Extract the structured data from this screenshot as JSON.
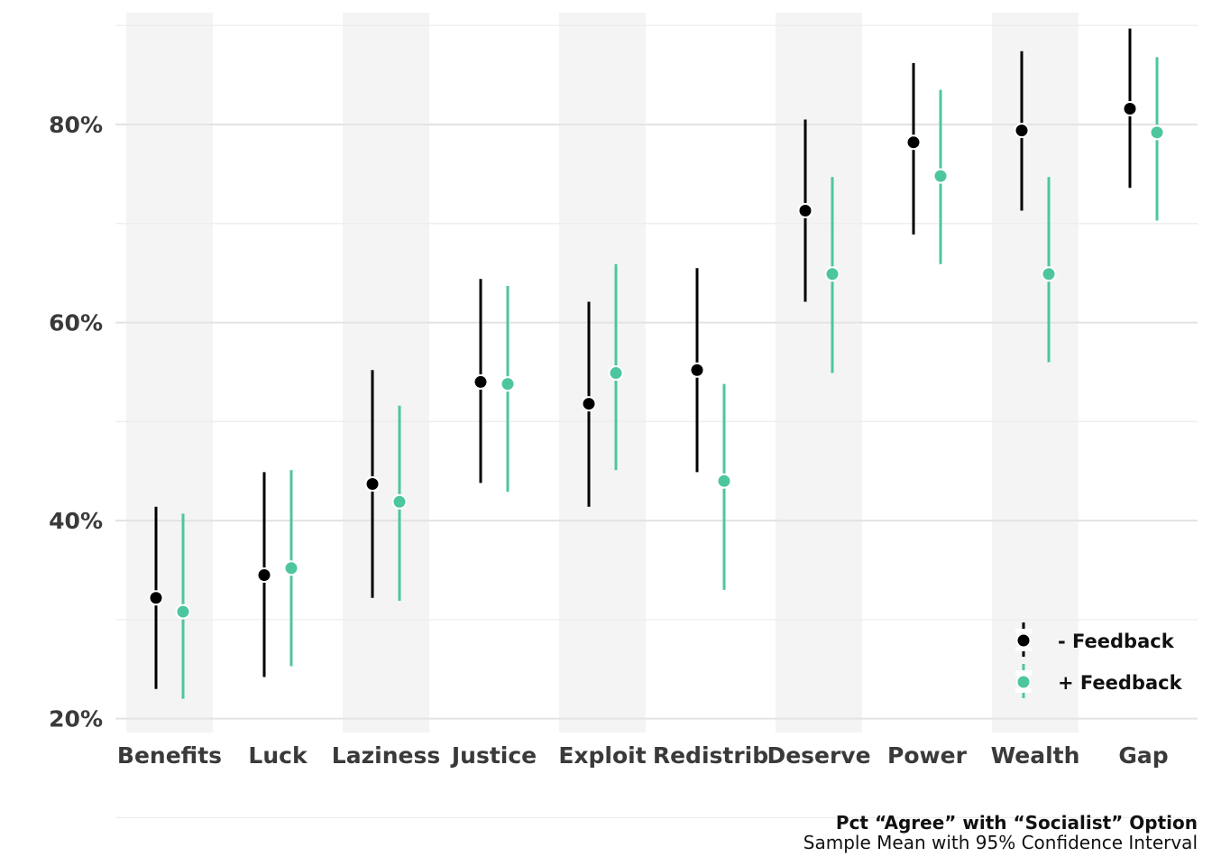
{
  "chart_data": {
    "type": "scatter",
    "subtype": "point-range (dodged)",
    "categories": [
      "Benefits",
      "Luck",
      "Laziness",
      "Justice",
      "Exploit",
      "Redistrib",
      "Deserve",
      "Power",
      "Wealth",
      "Gap"
    ],
    "series": [
      {
        "name": "- Feedback",
        "color": "#000000",
        "values": [
          32.2,
          34.5,
          43.7,
          54.0,
          51.8,
          55.2,
          71.3,
          78.2,
          79.4,
          81.6
        ],
        "ci_low": [
          23.0,
          24.2,
          32.2,
          43.8,
          41.4,
          44.9,
          62.1,
          68.9,
          71.3,
          73.6
        ],
        "ci_high": [
          41.4,
          44.9,
          55.2,
          64.4,
          62.1,
          65.5,
          80.5,
          86.2,
          87.4,
          89.7
        ]
      },
      {
        "name": "+ Feedback",
        "color": "#4DC69F",
        "values": [
          30.8,
          35.2,
          41.9,
          53.8,
          54.9,
          44.0,
          64.9,
          74.8,
          64.9,
          79.2
        ],
        "ci_low": [
          22.0,
          25.3,
          31.9,
          42.9,
          45.1,
          33.0,
          54.9,
          65.9,
          56.0,
          70.3
        ],
        "ci_high": [
          40.7,
          45.1,
          51.6,
          63.7,
          65.9,
          53.8,
          74.7,
          83.5,
          74.7,
          86.8
        ]
      }
    ],
    "y_ticks": [
      "20%",
      "40%",
      "60%",
      "80%"
    ],
    "y_tick_values": [
      20,
      40,
      60,
      80
    ],
    "ylim": [
      18.6,
      91.3
    ],
    "grid": true,
    "alternating_bands": true,
    "band_color": "#F4F4F4",
    "legend_position": "bottom-right",
    "caption_title": "Pct “Agree” with “Socialist” Option",
    "caption_subtitle": "Sample Mean with 95% Confidence Interval"
  }
}
